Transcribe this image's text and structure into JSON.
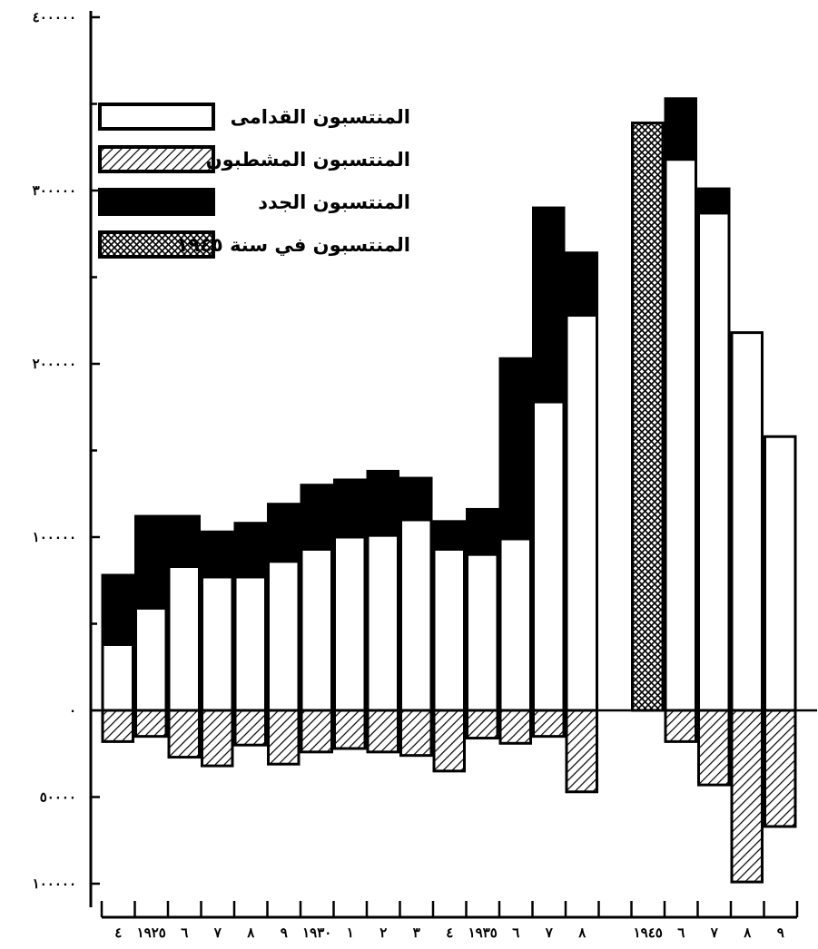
{
  "chart_data": {
    "type": "bar",
    "stacked": true,
    "title": "",
    "xlabel": "",
    "ylabel": "",
    "ylim": [
      -100000,
      410000
    ],
    "grid": false,
    "legend_position": "top-left",
    "y_tick_values": [
      -100000,
      -50000,
      0,
      100000,
      200000,
      300000,
      400000
    ],
    "y_tick_labels": [
      "١٠٠٠٠٠",
      "٥٠٠٠٠",
      "٠",
      "١٠٠٠٠٠",
      "٢٠٠٠٠٠",
      "٣٠٠٠٠٠",
      "٤٠٠٠٠٠"
    ],
    "categories": [
      "٤",
      "١٩٢٥",
      "٦",
      "٧",
      "٨",
      "٩",
      "١٩٣٠",
      "١",
      "٢",
      "٣",
      "٤",
      "١٩٣٥",
      "٦",
      "٧",
      "٨",
      "١٩٤٥",
      "٦",
      "٧",
      "٨",
      "٩"
    ],
    "gap_after_index": 14,
    "series": [
      {
        "name": "المنتسبون القدامى",
        "pattern": "white",
        "values": [
          38000,
          59000,
          83000,
          77000,
          77000,
          86000,
          93000,
          100000,
          101000,
          110000,
          93000,
          90000,
          99000,
          178000,
          228000,
          0,
          318000,
          287000,
          218000,
          158000
        ]
      },
      {
        "name": "المنتسبون الجدد",
        "pattern": "black",
        "values": [
          40000,
          53000,
          29000,
          26000,
          31000,
          33000,
          37000,
          33000,
          37000,
          24000,
          16000,
          26000,
          104000,
          112000,
          36000,
          0,
          35000,
          14000,
          0,
          0
        ]
      },
      {
        "name": "المنتسبون المشطبون",
        "pattern": "hatched",
        "values": [
          -18000,
          -15000,
          -27000,
          -32000,
          -20000,
          -31000,
          -24000,
          -22000,
          -24000,
          -26000,
          -35000,
          -16000,
          -19000,
          -15000,
          -47000,
          0,
          -18000,
          -43000,
          -99000,
          -67000
        ]
      },
      {
        "name": "المنتسبون في سنة ١٩٤٥",
        "pattern": "crosshatched",
        "values": [
          0,
          0,
          0,
          0,
          0,
          0,
          0,
          0,
          0,
          0,
          0,
          0,
          0,
          0,
          0,
          339000,
          0,
          0,
          0,
          0
        ]
      }
    ],
    "legend": [
      {
        "label": "المنتسبون القدامى",
        "pattern": "white"
      },
      {
        "label": "المنتسبون المشطبون",
        "pattern": "hatched"
      },
      {
        "label": "المنتسبون الجدد",
        "pattern": "black"
      },
      {
        "label": "المنتسبون في سنة ١٩٤٥",
        "pattern": "crosshatched"
      }
    ]
  }
}
